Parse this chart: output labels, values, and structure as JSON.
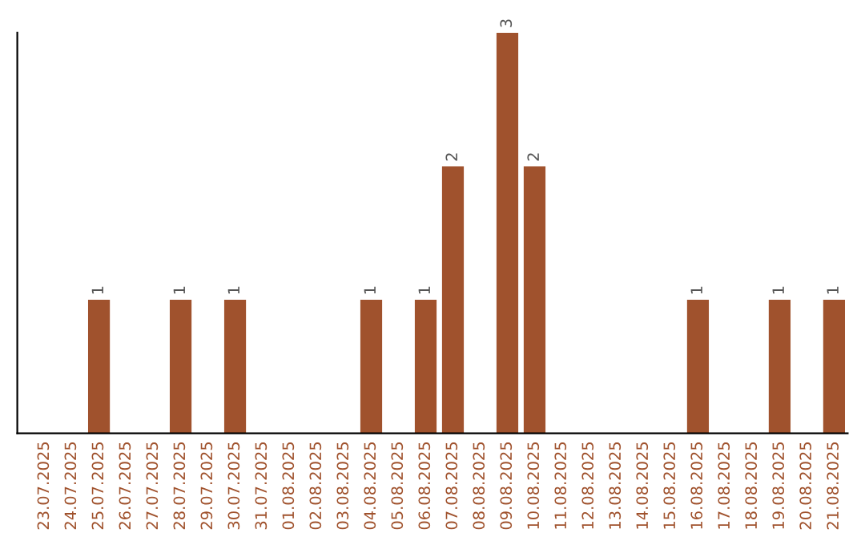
{
  "chart_data": {
    "type": "bar",
    "categories": [
      "23.07.2025",
      "24.07.2025",
      "25.07.2025",
      "26.07.2025",
      "27.07.2025",
      "28.07.2025",
      "29.07.2025",
      "30.07.2025",
      "31.07.2025",
      "01.08.2025",
      "02.08.2025",
      "03.08.2025",
      "04.08.2025",
      "05.08.2025",
      "06.08.2025",
      "07.08.2025",
      "08.08.2025",
      "09.08.2025",
      "10.08.2025",
      "11.08.2025",
      "12.08.2025",
      "13.08.2025",
      "14.08.2025",
      "15.08.2025",
      "16.08.2025",
      "17.08.2025",
      "18.08.2025",
      "19.08.2025",
      "20.08.2025",
      "21.08.2025"
    ],
    "values": [
      null,
      null,
      1,
      null,
      null,
      1,
      null,
      1,
      null,
      null,
      null,
      null,
      1,
      null,
      1,
      2,
      null,
      3,
      2,
      null,
      null,
      null,
      null,
      null,
      1,
      null,
      null,
      1,
      null,
      1
    ],
    "color": "#a0522d",
    "data_labels": true,
    "tick_labels": "x"
  }
}
